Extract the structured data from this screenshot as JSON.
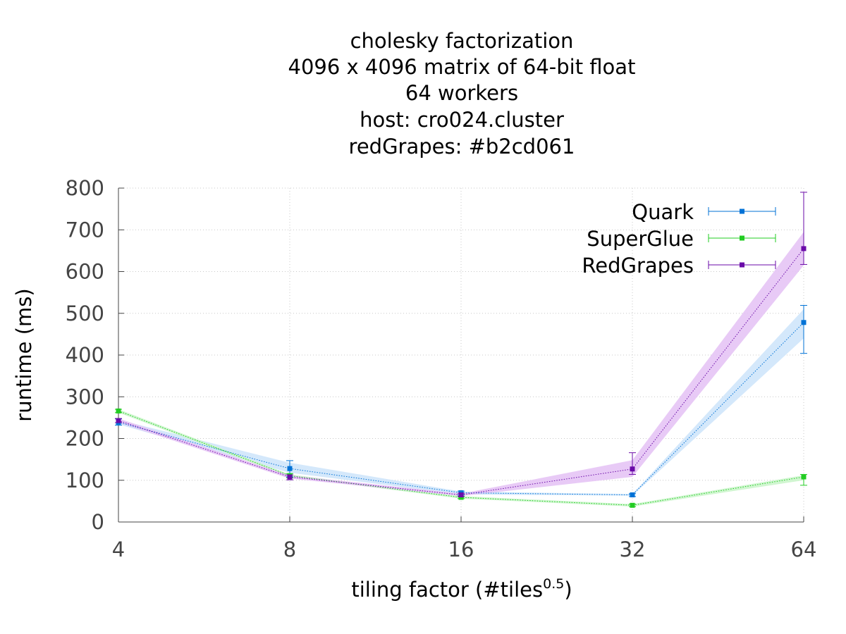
{
  "chart_data": {
    "type": "line",
    "title_lines": [
      "cholesky factorization",
      "4096 x 4096 matrix of 64-bit float",
      "64 workers",
      "host: cro024.cluster",
      "redGrapes: #b2cd061"
    ],
    "xlabel": "tiling factor (#tiles",
    "xlabel_sup": "0.5",
    "xlabel_end": ")",
    "ylabel": "runtime (ms)",
    "x_scale": "log2",
    "x": [
      4,
      8,
      16,
      32,
      64
    ],
    "x_ticks": [
      "4",
      "8",
      "16",
      "32",
      "64"
    ],
    "ylim": [
      0,
      800
    ],
    "y_ticks": [
      "0",
      "100",
      "200",
      "300",
      "400",
      "500",
      "600",
      "700",
      "800"
    ],
    "grid": true,
    "legend_position": "top-right",
    "series": [
      {
        "name": "Quark",
        "color": "#0072d6",
        "band_color": "#cfe5fb",
        "values": [
          239,
          128,
          70,
          65,
          478
        ],
        "err_low": [
          232,
          108,
          65,
          61,
          404
        ],
        "err_high": [
          247,
          147,
          74,
          68,
          519
        ],
        "band_low": [
          234,
          118,
          66,
          63,
          440
        ],
        "band_high": [
          245,
          142,
          73,
          67,
          510
        ]
      },
      {
        "name": "SuperGlue",
        "color": "#22cc22",
        "band_color": "#ccf5cc",
        "values": [
          266,
          111,
          59,
          40,
          108
        ],
        "err_low": [
          262,
          106,
          56,
          37,
          88
        ],
        "err_high": [
          270,
          116,
          62,
          43,
          114
        ],
        "band_low": [
          262,
          108,
          56,
          37,
          100
        ],
        "band_high": [
          270,
          114,
          62,
          43,
          112
        ]
      },
      {
        "name": "RedGrapes",
        "color": "#6a0aa8",
        "band_color": "#e6c4f5",
        "values": [
          243,
          108,
          65,
          127,
          655
        ],
        "err_low": [
          238,
          101,
          61,
          114,
          617
        ],
        "err_high": [
          248,
          113,
          69,
          166,
          790
        ],
        "band_low": [
          238,
          104,
          62,
          108,
          615
        ],
        "band_high": [
          248,
          112,
          68,
          148,
          695
        ]
      }
    ]
  }
}
